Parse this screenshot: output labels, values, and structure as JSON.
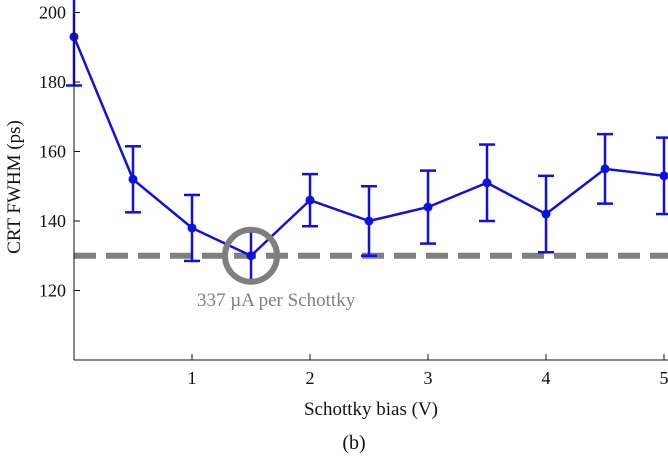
{
  "chart_data": {
    "type": "line",
    "xlabel": "Schottky bias (V)",
    "ylabel": "CRT FWHM (ps)",
    "xlim": [
      0,
      5
    ],
    "ylim": [
      100,
      200
    ],
    "xticks": [
      1,
      2,
      3,
      4,
      5
    ],
    "yticks": [
      120,
      140,
      160,
      180,
      200
    ],
    "grid": false,
    "series": [
      {
        "color": "#1010e0",
        "marker": "circle",
        "x": [
          0.0,
          0.5,
          1.0,
          1.5,
          2.0,
          2.5,
          3.0,
          3.5,
          4.0,
          4.5,
          5.0
        ],
        "y": [
          193,
          152,
          138,
          130,
          146,
          140,
          144,
          151,
          142,
          155,
          153
        ],
        "err": [
          14,
          9.5,
          9.5,
          7,
          7.5,
          10,
          10.5,
          11,
          11,
          10,
          11
        ]
      }
    ],
    "reference_line": {
      "y": 130,
      "color": "#7f7f7f",
      "style": "dashed"
    },
    "highlight": {
      "x": 1.5,
      "y": 130,
      "color": "#7f7f7f",
      "shape": "circle"
    },
    "annotation": "337 µA per Schottky",
    "caption": "(b)"
  }
}
